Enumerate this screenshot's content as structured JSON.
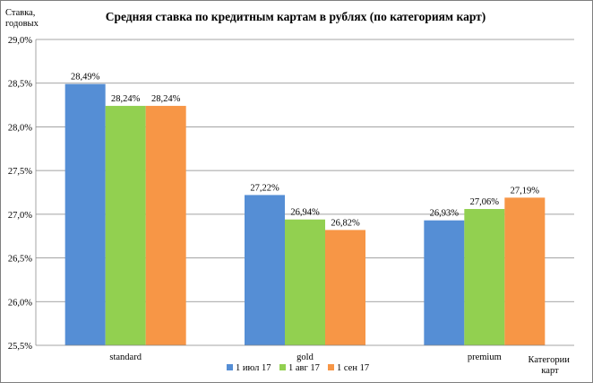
{
  "chart_data": {
    "type": "bar",
    "title": "Средняя ставка по кредитным картам в рублях (по категориям карт)",
    "ylabel_lines": [
      "Ставка,",
      "годовых"
    ],
    "xlabel_lines": [
      "Категории",
      "карт"
    ],
    "categories": [
      "standard",
      "gold",
      "premium"
    ],
    "series": [
      {
        "name": "1 июл 17",
        "color": "#558ed5",
        "values": [
          28.49,
          27.22,
          26.93
        ],
        "labels": [
          "28,49%",
          "27,22%",
          "26,93%"
        ]
      },
      {
        "name": "1 авг 17",
        "color": "#92d050",
        "values": [
          28.24,
          26.94,
          27.06
        ],
        "labels": [
          "28,24%",
          "26,94%",
          "27,06%"
        ]
      },
      {
        "name": "1 сен 17",
        "color": "#f79646",
        "values": [
          28.24,
          26.82,
          27.19
        ],
        "labels": [
          "28,24%",
          "26,82%",
          "27,19%"
        ]
      }
    ],
    "ylim": [
      25.5,
      29.0
    ],
    "yticks": [
      25.5,
      26.0,
      26.5,
      27.0,
      27.5,
      28.0,
      28.5,
      29.0
    ],
    "ytick_labels": [
      "25,5%",
      "26,0%",
      "26,5%",
      "27,0%",
      "27,5%",
      "28,0%",
      "28,5%",
      "29,0%"
    ],
    "grid": true,
    "legend": "bottom"
  }
}
